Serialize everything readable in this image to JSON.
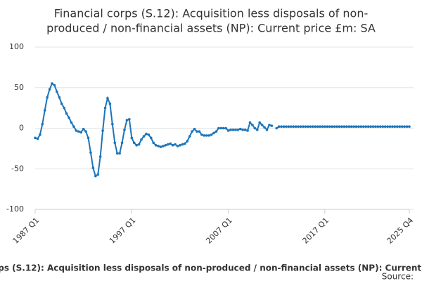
{
  "chart_data": {
    "type": "line",
    "title": [
      "Financial corps (S.12): Acquisition less disposals of non-",
      "produced / non-financial assets (NP): Current price £m: SA"
    ],
    "categories": [
      "1987 Q1",
      null,
      null,
      null,
      null,
      null,
      null,
      null,
      null,
      null,
      null,
      null,
      null,
      null,
      null,
      null,
      null,
      null,
      null,
      null,
      null,
      null,
      null,
      null,
      null,
      null,
      null,
      null,
      null,
      null,
      null,
      null,
      null,
      null,
      null,
      null,
      null,
      null,
      null,
      null,
      "1997 Q1",
      null,
      null,
      null,
      null,
      null,
      null,
      null,
      null,
      null,
      null,
      null,
      null,
      null,
      null,
      null,
      null,
      null,
      null,
      null,
      null,
      null,
      null,
      null,
      null,
      null,
      null,
      null,
      null,
      null,
      null,
      null,
      null,
      null,
      null,
      null,
      null,
      null,
      null,
      null,
      "2007 Q1",
      null,
      null,
      null,
      null,
      null,
      null,
      null,
      null,
      null,
      null,
      null,
      null,
      null,
      null,
      null,
      null,
      null,
      null,
      null,
      null,
      null,
      null,
      null,
      null,
      null,
      null,
      null,
      null,
      null,
      null,
      null,
      null,
      null,
      null,
      null,
      null,
      null,
      null,
      null,
      "2017 Q1",
      null,
      null,
      null,
      null,
      null,
      null,
      null,
      null,
      null,
      null,
      null,
      null,
      null,
      null,
      null,
      null,
      null,
      null,
      null,
      null,
      null,
      null,
      null,
      null,
      null,
      null,
      null,
      null,
      null,
      null,
      null,
      null,
      null,
      null,
      "2025 Q4"
    ],
    "series": [
      {
        "name": "Financial corps (S.12): Acquisition less disposals of non-produced / non-financial assets (NP): Current price £m: SA",
        "color": "#1b75bb",
        "values": [
          -12,
          -13,
          -8,
          5,
          22,
          38,
          48,
          55,
          53,
          45,
          38,
          30,
          25,
          18,
          13,
          7,
          2,
          -3,
          -4,
          -5,
          -1,
          -4,
          -12,
          -30,
          -49,
          -59,
          -57,
          -35,
          -3,
          25,
          37,
          30,
          5,
          -18,
          -31,
          -31,
          -18,
          -2,
          10,
          11,
          -12,
          -18,
          -21,
          -20,
          -14,
          -10,
          -7,
          -8,
          -12,
          -18,
          -21,
          -22,
          -23,
          -22,
          -21,
          -20,
          -19,
          -21,
          -20,
          -22,
          -21,
          -20,
          -19,
          -16,
          -10,
          -4,
          -1,
          -4,
          -4,
          -8,
          -9,
          -9,
          -9,
          -8,
          -6,
          -4,
          0,
          0,
          0,
          0,
          -3,
          -2,
          -2,
          -2,
          -2,
          -1,
          -2,
          -2,
          -3,
          7,
          4,
          0,
          -2,
          7,
          4,
          1,
          -2,
          4,
          3,
          null,
          0,
          2,
          2,
          2,
          2,
          2,
          2,
          2,
          2,
          2,
          2,
          2,
          2,
          2,
          2,
          2,
          2,
          2,
          2,
          2,
          2,
          2,
          2,
          2,
          2,
          2,
          2,
          2,
          2,
          2,
          2,
          2,
          2,
          2,
          2,
          2,
          2,
          2,
          2,
          2,
          2,
          2,
          2,
          2,
          2,
          2,
          2,
          2,
          2,
          2,
          2,
          2,
          2,
          2,
          2,
          2
        ]
      }
    ],
    "ylim": [
      -100,
      100
    ],
    "yticks": [
      -100,
      -50,
      0,
      50,
      100
    ],
    "grid": true,
    "source": "Source:"
  }
}
